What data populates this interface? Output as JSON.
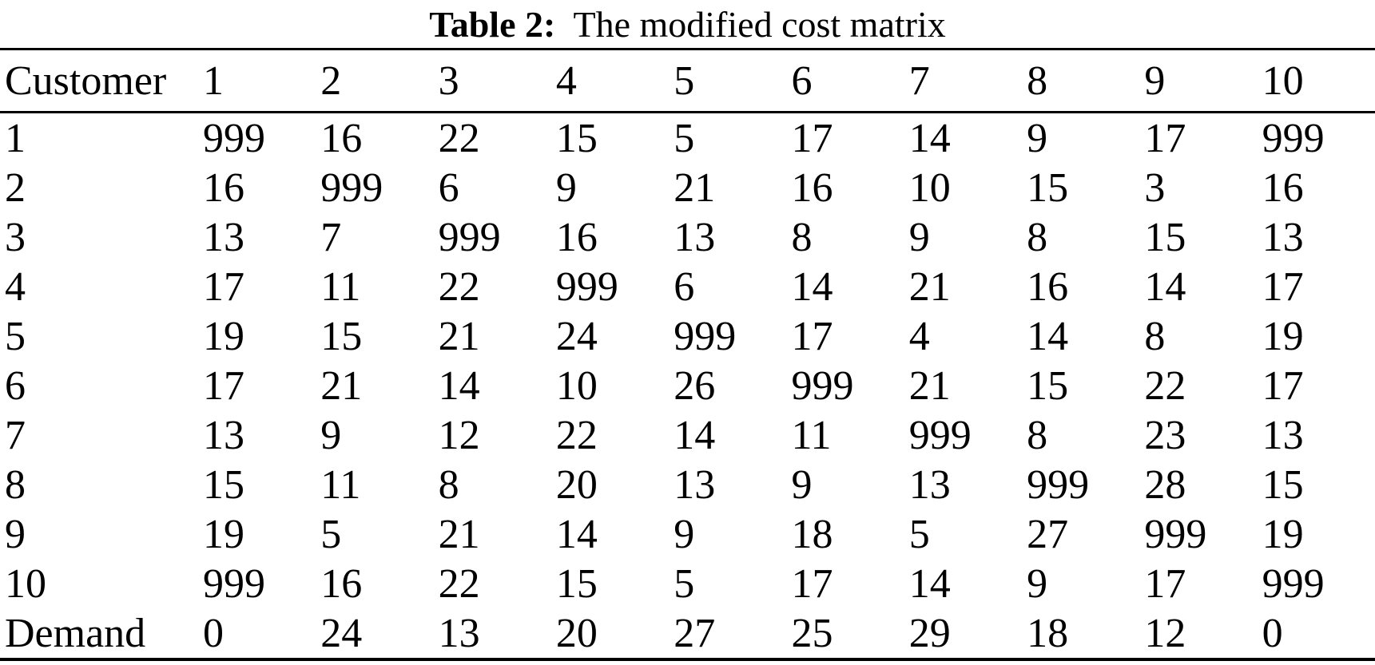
{
  "caption": {
    "label": "Table 2:",
    "text": "  The modified cost matrix"
  },
  "table": {
    "header": [
      "Customer",
      "1",
      "2",
      "3",
      "4",
      "5",
      "6",
      "7",
      "8",
      "9",
      "10"
    ],
    "rows": [
      {
        "label": "1",
        "values": [
          "999",
          "16",
          "22",
          "15",
          "5",
          "17",
          "14",
          "9",
          "17",
          "999"
        ]
      },
      {
        "label": "2",
        "values": [
          "16",
          "999",
          "6",
          "9",
          "21",
          "16",
          "10",
          "15",
          "3",
          "16"
        ]
      },
      {
        "label": "3",
        "values": [
          "13",
          "7",
          "999",
          "16",
          "13",
          "8",
          "9",
          "8",
          "15",
          "13"
        ]
      },
      {
        "label": "4",
        "values": [
          "17",
          "11",
          "22",
          "999",
          "6",
          "14",
          "21",
          "16",
          "14",
          "17"
        ]
      },
      {
        "label": "5",
        "values": [
          "19",
          "15",
          "21",
          "24",
          "999",
          "17",
          "4",
          "14",
          "8",
          "19"
        ]
      },
      {
        "label": "6",
        "values": [
          "17",
          "21",
          "14",
          "10",
          "26",
          "999",
          "21",
          "15",
          "22",
          "17"
        ]
      },
      {
        "label": "7",
        "values": [
          "13",
          "9",
          "12",
          "22",
          "14",
          "11",
          "999",
          "8",
          "23",
          "13"
        ]
      },
      {
        "label": "8",
        "values": [
          "15",
          "11",
          "8",
          "20",
          "13",
          "9",
          "13",
          "999",
          "28",
          "15"
        ]
      },
      {
        "label": "9",
        "values": [
          "19",
          "5",
          "21",
          "14",
          "9",
          "18",
          "5",
          "27",
          "999",
          "19"
        ]
      },
      {
        "label": "10",
        "values": [
          "999",
          "16",
          "22",
          "15",
          "5",
          "17",
          "14",
          "9",
          "17",
          "999"
        ]
      },
      {
        "label": "Demand",
        "values": [
          "0",
          "24",
          "13",
          "20",
          "27",
          "25",
          "29",
          "18",
          "12",
          "0"
        ]
      }
    ]
  },
  "colors": {
    "text": "#000000",
    "background": "#ffffff",
    "rule": "#000000"
  }
}
